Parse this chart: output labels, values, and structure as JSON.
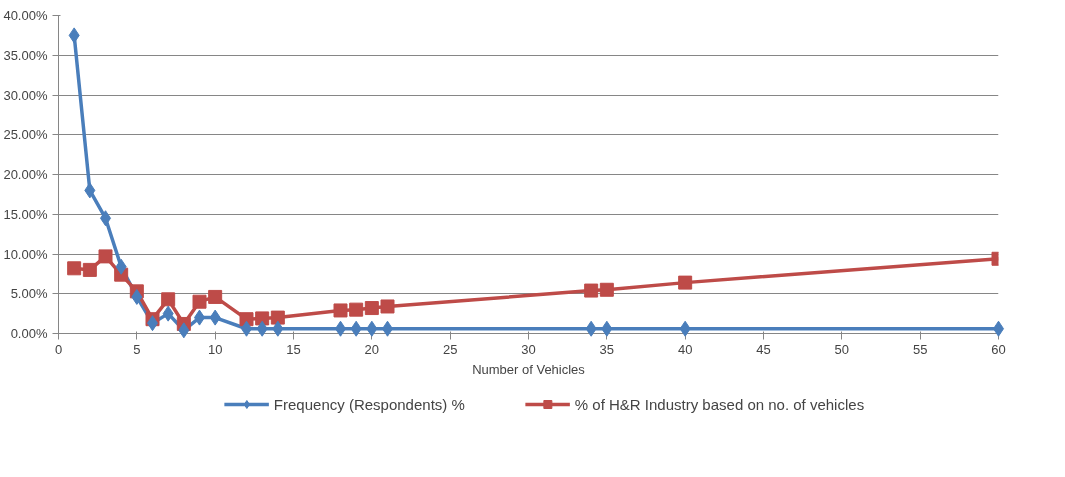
{
  "chart_data": {
    "type": "line",
    "xlabel": "Number of Vehicles",
    "x": [
      1,
      2,
      3,
      4,
      5,
      6,
      7,
      8,
      9,
      10,
      12,
      13,
      14,
      18,
      19,
      20,
      21,
      34,
      35,
      40,
      60
    ],
    "series": [
      {
        "name": "Frequency (Respondents) %",
        "color": "#4a7ebb",
        "marker": "diamond",
        "values": [
          37.5,
          18.0,
          14.5,
          8.4,
          4.6,
          1.3,
          2.5,
          0.4,
          2.0,
          2.0,
          0.6,
          0.6,
          0.6,
          0.6,
          0.6,
          0.6,
          0.6,
          0.6,
          0.6,
          0.6,
          0.6
        ]
      },
      {
        "name": "% of H&R Industry based on no. of vehicles",
        "color": "#be4b48",
        "marker": "square",
        "values": [
          8.2,
          8.0,
          9.7,
          7.4,
          5.3,
          1.8,
          4.3,
          1.2,
          4.0,
          4.6,
          1.8,
          1.9,
          2.0,
          2.9,
          3.0,
          3.2,
          3.4,
          5.4,
          5.5,
          6.4,
          9.4
        ]
      }
    ],
    "xlim": [
      0,
      60
    ],
    "xticks": [
      0,
      5,
      10,
      15,
      20,
      25,
      30,
      35,
      40,
      45,
      50,
      55,
      60
    ],
    "ylim": [
      0,
      40
    ],
    "yticks": [
      {
        "value": 0,
        "label": "0.00%"
      },
      {
        "value": 5,
        "label": "5.00%"
      },
      {
        "value": 10,
        "label": "10.00%"
      },
      {
        "value": 15,
        "label": "15.00%"
      },
      {
        "value": 20,
        "label": "20.00%"
      },
      {
        "value": 25,
        "label": "25.00%"
      },
      {
        "value": 30,
        "label": "30.00%"
      },
      {
        "value": 35,
        "label": "35.00%"
      },
      {
        "value": 40,
        "label": "40.00%"
      }
    ],
    "grid": "y",
    "legend": "bottom",
    "line_style": "solid"
  }
}
